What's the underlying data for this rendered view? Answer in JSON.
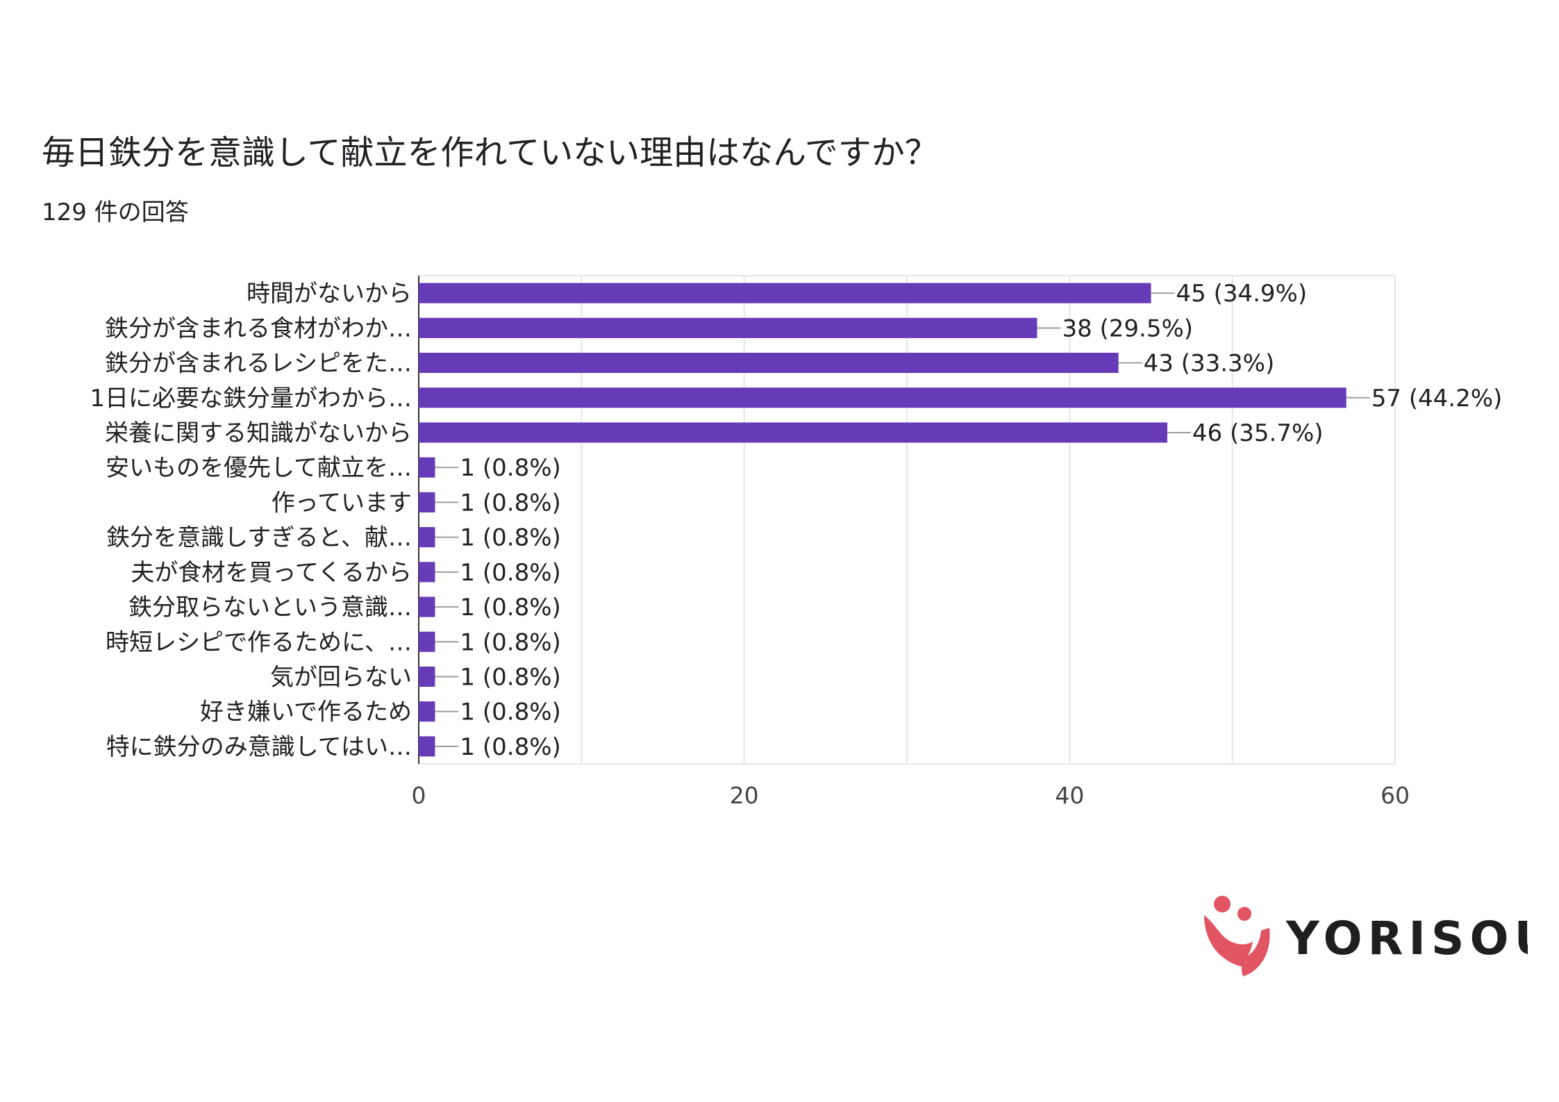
{
  "header": {
    "title": "毎日鉄分を意識して献立を作れていない理由はなんですか？",
    "responses": "129 件の回答"
  },
  "chart_data": {
    "type": "bar",
    "orientation": "horizontal",
    "categories": [
      "時間がないから",
      "鉄分が含まれる食材がわか…",
      "鉄分が含まれるレシピをた…",
      "1日に必要な鉄分量がわから…",
      "栄養に関する知識がないから",
      "安いものを優先して献立を…",
      "作っています",
      "鉄分を意識しすぎると、献…",
      "夫が食材を買ってくるから",
      "鉄分取らないという意識…",
      "時短レシピで作るために、…",
      "気が回らない",
      "好き嫌いで作るため",
      "特に鉄分のみ意識してはい…"
    ],
    "values": [
      45,
      38,
      43,
      57,
      46,
      1,
      1,
      1,
      1,
      1,
      1,
      1,
      1,
      1
    ],
    "data_labels": [
      "45 (34.9%)",
      "38 (29.5%)",
      "43 (33.3%)",
      "57 (44.2%)",
      "46 (35.7%)",
      "1 (0.8%)",
      "1 (0.8%)",
      "1 (0.8%)",
      "1 (0.8%)",
      "1 (0.8%)",
      "1 (0.8%)",
      "1 (0.8%)",
      "1 (0.8%)",
      "1 (0.8%)"
    ],
    "xticks": [
      0,
      20,
      40,
      60
    ],
    "xtick_labels": [
      "0",
      "20",
      "40",
      "60"
    ],
    "xlim": [
      0,
      60
    ],
    "grid": true,
    "bar_color": "#673ab7"
  },
  "logo": {
    "brand": "YORISOU",
    "icon": "two-people-hug-icon",
    "color": "#e25563"
  }
}
